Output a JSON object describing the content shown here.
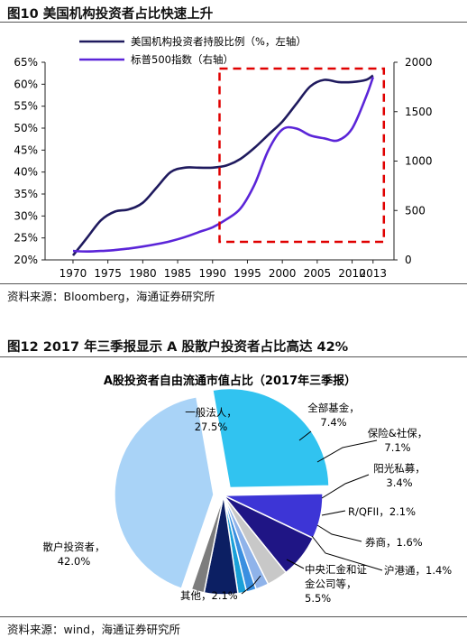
{
  "figure1": {
    "title": "图10 美国机构投资者占比快速上升",
    "source": "资料来源：Bloomberg，海通证券研究所"
  },
  "figure2": {
    "title": "图12 2017 年三季报显示 A 股散户投资者占比高达 42%",
    "source": "资料来源：wind，海通证券研究所"
  },
  "colors": {
    "series1": "#1f1a5e",
    "series2": "#5b25d8",
    "highlight": "#e00000"
  },
  "chart_data": [
    {
      "type": "line",
      "title": "",
      "x": [
        1970,
        1975,
        1980,
        1985,
        1990,
        1995,
        2000,
        2005,
        2010,
        2013
      ],
      "xlabel": "",
      "x_tick_labels": [
        "1970",
        "1975",
        "1980",
        "1985",
        "1990",
        "1995",
        "2000",
        "2005",
        "2010",
        "2013"
      ],
      "y_left": {
        "lim": [
          20,
          65
        ],
        "ticks": [
          "20%",
          "25%",
          "30%",
          "35%",
          "40%",
          "45%",
          "50%",
          "55%",
          "60%",
          "65%"
        ]
      },
      "y_right": {
        "lim": [
          0,
          2000
        ],
        "ticks": [
          "0",
          "500",
          "1000",
          "1500",
          "2000"
        ]
      },
      "series": [
        {
          "name": "美国机构投资者持股比例（%，左轴）",
          "axis": "left",
          "x": [
            1970,
            1972,
            1974,
            1976,
            1978,
            1980,
            1982,
            1984,
            1986,
            1988,
            1990,
            1992,
            1994,
            1996,
            1998,
            2000,
            2002,
            2004,
            2006,
            2008,
            2010,
            2012,
            2013
          ],
          "values": [
            21,
            25,
            29,
            31,
            31.5,
            33,
            36.5,
            40,
            41,
            41,
            41,
            41.5,
            43,
            45.5,
            48.5,
            51.5,
            55.5,
            59.5,
            61,
            60.5,
            60.5,
            61,
            62
          ]
        },
        {
          "name": "标普500指数（右轴）",
          "axis": "right",
          "x": [
            1970,
            1972,
            1974,
            1976,
            1978,
            1980,
            1982,
            1984,
            1986,
            1988,
            1990,
            1992,
            1994,
            1996,
            1998,
            2000,
            2002,
            2004,
            2006,
            2008,
            2010,
            2012,
            2013
          ],
          "values": [
            90,
            85,
            90,
            100,
            115,
            135,
            160,
            190,
            230,
            280,
            330,
            410,
            520,
            760,
            1110,
            1320,
            1330,
            1260,
            1230,
            1210,
            1330,
            1650,
            1850
          ]
        }
      ],
      "highlight_box": {
        "x_range": [
          1991,
          2013
        ],
        "label": ""
      },
      "legend": "top-center",
      "grid": false
    },
    {
      "type": "pie",
      "title": "A股投资者自由流通市值占比（2017年三季报）",
      "slices": [
        {
          "label": "一般法人",
          "pct_label": "27.5%",
          "value": 27.5,
          "color": "#31c3f0"
        },
        {
          "label": "全部基金",
          "pct_label": "7.4%",
          "value": 7.4,
          "color": "#3d35d6"
        },
        {
          "label": "保险&社保",
          "pct_label": "7.1%",
          "value": 7.1,
          "color": "#1f1585"
        },
        {
          "label": "阳光私募",
          "pct_label": "3.4%",
          "value": 3.4,
          "color": "#c8c8c8"
        },
        {
          "label": "R/QFII",
          "pct_label": "2.1%",
          "value": 2.1,
          "color": "#8fb3ea"
        },
        {
          "label": "券商",
          "pct_label": "1.6%",
          "value": 1.6,
          "color": "#3a8fe0"
        },
        {
          "label": "沪港通",
          "pct_label": "1.4%",
          "value": 1.4,
          "color": "#1aa0d8"
        },
        {
          "label": "中央汇金和证金公司等",
          "pct_label": "5.5%",
          "value": 5.5,
          "color": "#0c1f63"
        },
        {
          "label": "其他",
          "pct_label": "2.1%",
          "value": 2.1,
          "color": "#7d7d7d"
        },
        {
          "label": "散户投资者",
          "pct_label": "42.0%",
          "value": 42.0,
          "color": "#a9d3f7"
        }
      ],
      "exploded": [
        "一般法人",
        "散户投资者"
      ],
      "legend": "none"
    }
  ]
}
